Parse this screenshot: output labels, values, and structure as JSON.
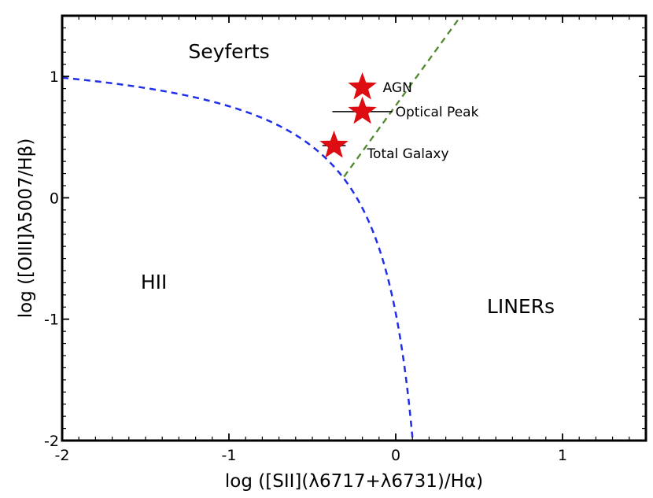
{
  "chart_data": {
    "type": "scatter",
    "title": "",
    "xlabel": "log ([SII](λ6717+λ6731)/Hα)",
    "ylabel": "log ([OIII]λ5007/Hβ)",
    "xlim": [
      -2.0,
      1.5
    ],
    "ylim": [
      -2.0,
      1.5
    ],
    "x_ticks": [
      -2,
      -1,
      0,
      1
    ],
    "x_tick_labels": [
      "-2",
      "-1",
      "0",
      "1"
    ],
    "y_ticks": [
      -2,
      -1,
      0,
      1
    ],
    "y_tick_labels": [
      "-2",
      "-1",
      "0",
      "1"
    ],
    "grid": false,
    "legend": "none",
    "regions": [
      {
        "label": "Seyferts",
        "x": -1.0,
        "y": 1.15
      },
      {
        "label": "HII",
        "x": -1.45,
        "y": -0.75
      },
      {
        "label": "LINERs",
        "x": 0.75,
        "y": -0.95
      }
    ],
    "lines": [
      {
        "name": "Kewley et al. 2001 extreme starburst line",
        "style": "dashed",
        "color": "#1f2ee8",
        "function": "0.72/(x-0.32)+1.30",
        "x_range": [
          -2.0,
          0.1
        ]
      },
      {
        "name": "Seyfert-LINER division",
        "style": "dashed",
        "color": "#4f8a2e",
        "function": "1.89*x+0.76",
        "x_range": [
          -0.31,
          0.4
        ]
      }
    ],
    "points": [
      {
        "label": "AGN",
        "x": -0.2,
        "y": 0.91,
        "xerr": 0.0,
        "color": "#dd0d12"
      },
      {
        "label": "Optical Peak",
        "x": -0.2,
        "y": 0.71,
        "xerr": 0.18,
        "color": "#dd0d12"
      },
      {
        "label": "Total Galaxy",
        "x": -0.37,
        "y": 0.43,
        "xerr": 0.07,
        "color": "#dd0d12"
      }
    ]
  }
}
